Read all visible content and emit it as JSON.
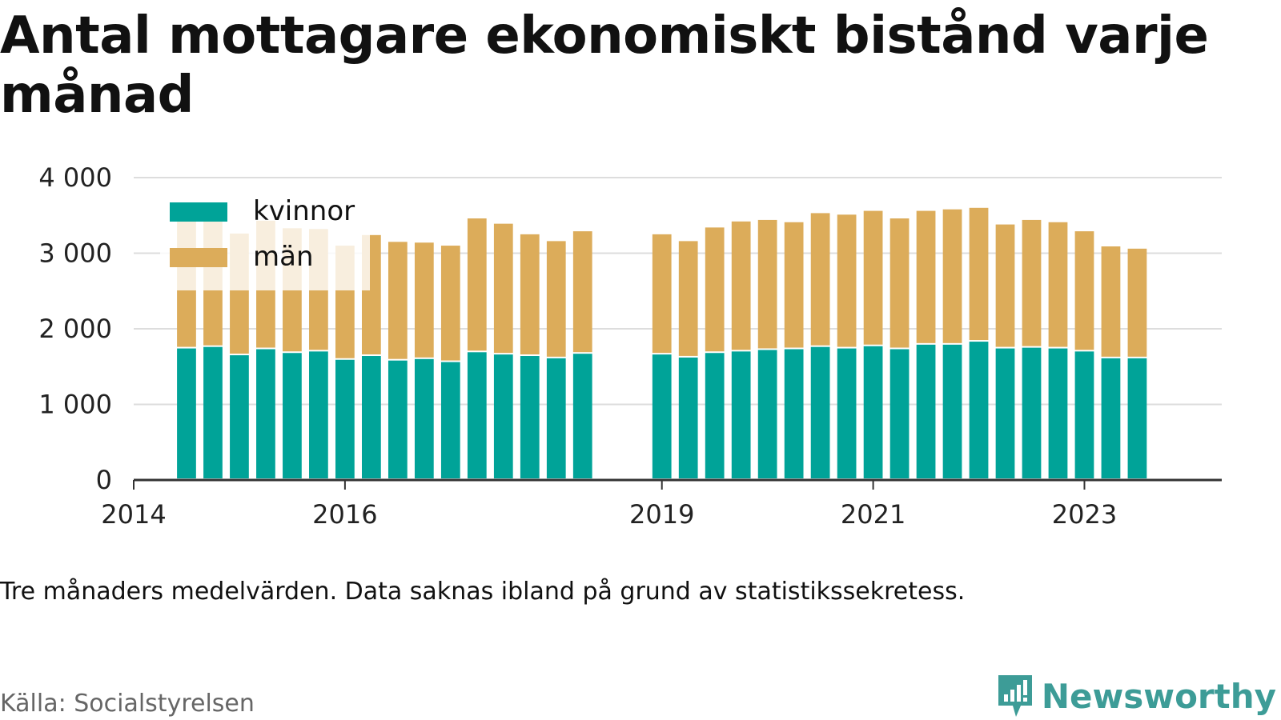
{
  "title": "Antal mottagare ekonomiskt bistånd varje månad",
  "note": "Tre månaders medelvärden. Data saknas ibland på grund av statistikssekretess.",
  "source": "Källa: Socialstyrelsen",
  "brand": {
    "name": "Newsworthy",
    "icon": "newsworthy-logo-icon",
    "color": "#3d9c97"
  },
  "chart_data": {
    "type": "bar",
    "stacked": true,
    "ylim": [
      0,
      4000
    ],
    "yticks": [
      0,
      1000,
      2000,
      3000,
      4000
    ],
    "ytick_labels": [
      "0",
      "1 000",
      "2 000",
      "3 000",
      "4 000"
    ],
    "xlim": [
      2014.0,
      2024.3
    ],
    "xticks": [
      2014,
      2016,
      2019,
      2021,
      2023
    ],
    "xtick_labels": [
      "2014",
      "2016",
      "2019",
      "2021",
      "2023"
    ],
    "grid": true,
    "legend_position": "top-left",
    "colors": {
      "kvinnor": "#00a398",
      "män": "#dcac5a",
      "grid": "#dddddd",
      "axis": "#333333"
    },
    "x": [
      2014.5,
      2014.75,
      2015.0,
      2015.25,
      2015.5,
      2015.75,
      2016.0,
      2016.25,
      2016.5,
      2016.75,
      2017.0,
      2017.25,
      2017.5,
      2017.75,
      2018.0,
      2018.25,
      2019.0,
      2019.25,
      2019.5,
      2019.75,
      2020.0,
      2020.25,
      2020.5,
      2020.75,
      2021.0,
      2021.25,
      2021.5,
      2021.75,
      2022.0,
      2022.25,
      2022.5,
      2022.75,
      2023.0,
      2023.25,
      2023.5
    ],
    "series": [
      {
        "name": "kvinnor",
        "values": [
          1740,
          1760,
          1650,
          1730,
          1680,
          1700,
          1590,
          1640,
          1580,
          1600,
          1560,
          1690,
          1660,
          1640,
          1610,
          1670,
          1660,
          1620,
          1680,
          1700,
          1720,
          1730,
          1760,
          1740,
          1770,
          1730,
          1790,
          1790,
          1830,
          1740,
          1750,
          1740,
          1700,
          1610,
          1610
        ]
      },
      {
        "name": "män",
        "values": [
          1730,
          1720,
          1610,
          1700,
          1650,
          1620,
          1510,
          1600,
          1570,
          1540,
          1540,
          1770,
          1730,
          1610,
          1550,
          1620,
          1590,
          1540,
          1660,
          1720,
          1720,
          1680,
          1770,
          1770,
          1790,
          1730,
          1770,
          1790,
          1770,
          1640,
          1690,
          1670,
          1590,
          1480,
          1450
        ]
      }
    ],
    "xlabel": "",
    "ylabel": ""
  }
}
